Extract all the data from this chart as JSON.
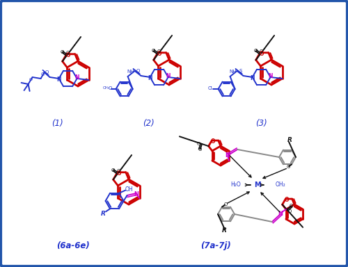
{
  "bg": "#ffffff",
  "border_color": "#2255aa",
  "RED": "#cc0000",
  "BLUE": "#2233cc",
  "MAG": "#cc00cc",
  "BLK": "#111111",
  "GRAY": "#888888",
  "label_1": "(1)",
  "label_2": "(2)",
  "label_3": "(3)",
  "label_6": "(6a-6e)",
  "label_7": "(7a-7j)"
}
